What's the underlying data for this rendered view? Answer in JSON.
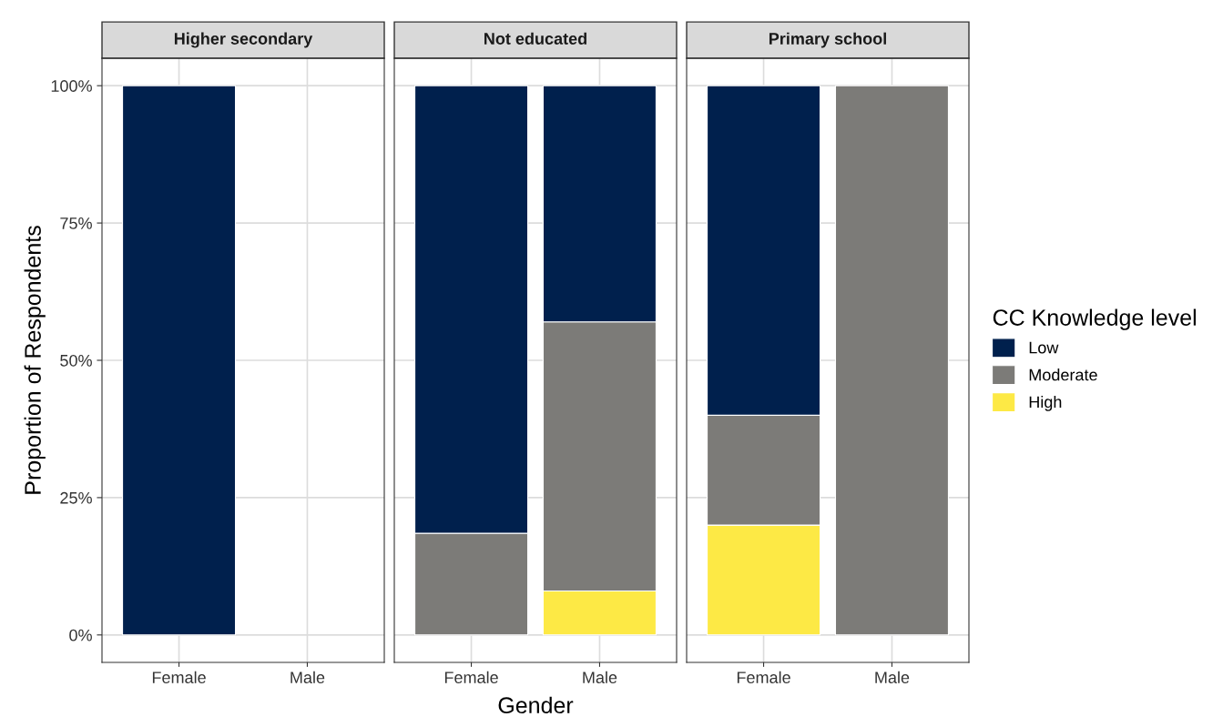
{
  "chart_data": [
    {
      "type": "bar",
      "title": "Higher secondary",
      "ylabel": "Proportion of Respondents",
      "categories": [
        "Female",
        "Male"
      ],
      "stacked": true,
      "grid": true,
      "ylim": [
        -5,
        105
      ],
      "yticks": [
        {
          "value": 0,
          "label": "0%"
        },
        {
          "value": 25,
          "label": "25%"
        },
        {
          "value": 50,
          "label": "50%"
        },
        {
          "value": 75,
          "label": "75%"
        },
        {
          "value": 100,
          "label": "100%"
        }
      ],
      "series": [
        {
          "color": "#fde945",
          "values": [
            0,
            null
          ]
        },
        {
          "color": "#7c7b78",
          "values": [
            0,
            null
          ]
        },
        {
          "color": "#00204d",
          "values": [
            100,
            null
          ]
        }
      ]
    },
    {
      "type": "bar",
      "title": "Not educated",
      "xlabel": "Gender",
      "categories": [
        "Female",
        "Male"
      ],
      "stacked": true,
      "grid": true,
      "tick_labels": "x",
      "ylim": [
        -5,
        105
      ],
      "yticks": [
        0,
        25,
        50,
        75,
        100
      ],
      "series": [
        {
          "color": "#fde945",
          "values": [
            0,
            8
          ]
        },
        {
          "color": "#7c7b78",
          "values": [
            18.5,
            49
          ]
        },
        {
          "color": "#00204d",
          "values": [
            81.5,
            43
          ]
        }
      ]
    },
    {
      "type": "bar",
      "title": "Primary school",
      "categories": [
        "Female",
        "Male"
      ],
      "stacked": true,
      "grid": true,
      "tick_labels": "x",
      "legend": "right",
      "legend_title": "CC Knowledge level",
      "ylim": [
        -5,
        105
      ],
      "yticks": [
        0,
        25,
        50,
        75,
        100
      ],
      "series": [
        {
          "name": "High",
          "color": "#fde945",
          "values": [
            20,
            0
          ]
        },
        {
          "name": "Moderate",
          "color": "#7c7b78",
          "values": [
            20,
            100
          ]
        },
        {
          "name": "Low",
          "color": "#00204d",
          "values": [
            60,
            0
          ]
        }
      ]
    }
  ]
}
